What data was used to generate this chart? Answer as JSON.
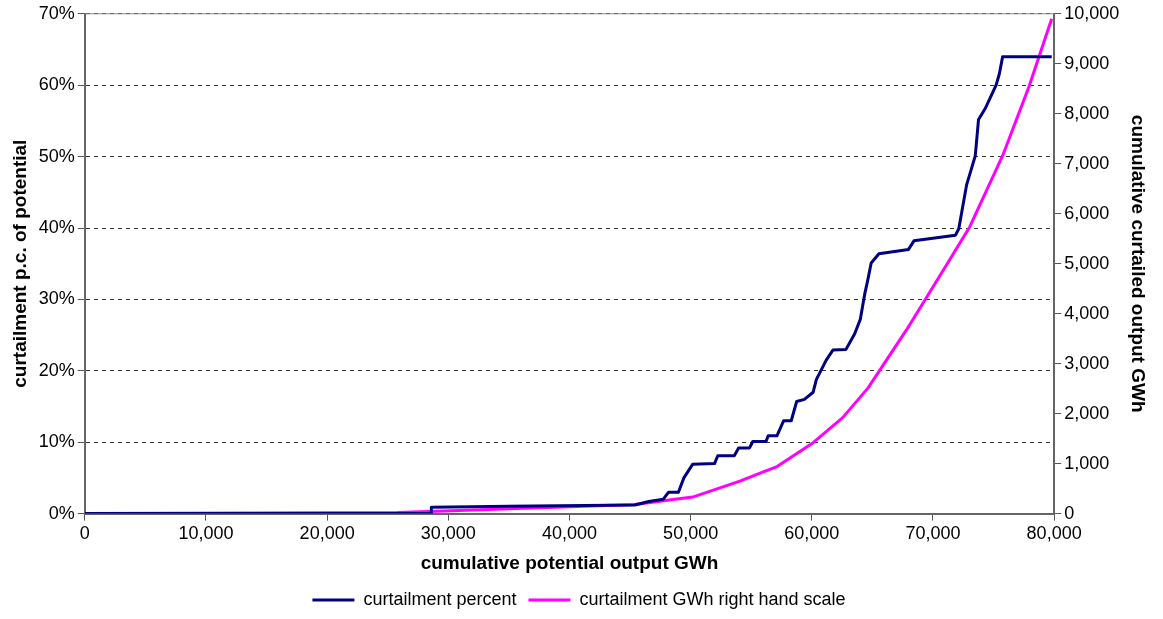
{
  "chart_data": {
    "type": "line",
    "xlabel": "cumulative potential output GWh",
    "ylabel": "curtailment p.c. of potential",
    "y2label": "cumulative curtailed output GWh",
    "xlim": [
      0,
      80000
    ],
    "xticks": [
      {
        "value": 0,
        "label": "0"
      },
      {
        "value": 10000,
        "label": "10,000"
      },
      {
        "value": 20000,
        "label": "20,000"
      },
      {
        "value": 30000,
        "label": "30,000"
      },
      {
        "value": 40000,
        "label": "40,000"
      },
      {
        "value": 50000,
        "label": "50,000"
      },
      {
        "value": 60000,
        "label": "60,000"
      },
      {
        "value": 70000,
        "label": "70,000"
      },
      {
        "value": 80000,
        "label": "80,000"
      }
    ],
    "ylim": [
      0,
      70
    ],
    "yticks": [
      {
        "value": 0,
        "label": "0%"
      },
      {
        "value": 10,
        "label": "10%"
      },
      {
        "value": 20,
        "label": "20%"
      },
      {
        "value": 30,
        "label": "30%"
      },
      {
        "value": 40,
        "label": "40%"
      },
      {
        "value": 50,
        "label": "50%"
      },
      {
        "value": 60,
        "label": "60%"
      },
      {
        "value": 70,
        "label": "70%"
      }
    ],
    "y2lim": [
      0,
      10000
    ],
    "y2ticks": [
      {
        "value": 0,
        "label": "0"
      },
      {
        "value": 1000,
        "label": "1,000"
      },
      {
        "value": 2000,
        "label": "2,000"
      },
      {
        "value": 3000,
        "label": "3,000"
      },
      {
        "value": 4000,
        "label": "4,000"
      },
      {
        "value": 5000,
        "label": "5,000"
      },
      {
        "value": 6000,
        "label": "6,000"
      },
      {
        "value": 7000,
        "label": "7,000"
      },
      {
        "value": 8000,
        "label": "8,000"
      },
      {
        "value": 9000,
        "label": "9,000"
      },
      {
        "value": 10000,
        "label": "10,000"
      }
    ],
    "grid": "y",
    "legend": "bottom",
    "marker": "none",
    "line_style": "solid",
    "series": [
      {
        "name": "curtailment percent",
        "color": "#000080",
        "x": [
          0,
          28600,
          28600,
          45400,
          46550,
          47730,
          48180,
          48990,
          49440,
          50160,
          51970,
          52240,
          53600,
          53960,
          54860,
          55130,
          56220,
          56400,
          57120,
          57670,
          58300,
          58750,
          59390,
          60110,
          60380,
          61190,
          61740,
          62820,
          63540,
          64000,
          64360,
          64630,
          64900,
          65540,
          67980,
          68430,
          71860,
          72130,
          72770,
          73490,
          73760,
          74300,
          75210,
          75480,
          75750,
          79800
        ],
        "values": [
          0,
          0,
          0.9,
          1.2,
          1.7,
          2,
          3,
          3,
          5,
          6.9,
          7,
          8.1,
          8.1,
          9.2,
          9.2,
          10.1,
          10.1,
          10.9,
          10.9,
          13,
          13,
          15.7,
          16,
          17,
          18.8,
          21.5,
          22.9,
          23,
          25.2,
          27.2,
          30.7,
          32.8,
          35.1,
          36.4,
          37,
          38.2,
          39,
          39.9,
          46,
          50.1,
          55.2,
          56.7,
          60,
          61.6,
          64,
          64
        ]
      },
      {
        "name": "curtailment GWh right hand scale",
        "color": "#ff00ff",
        "axis": "y2",
        "x": [
          0,
          25800,
          45380,
          50160,
          54060,
          57130,
          60110,
          62550,
          64630,
          67800,
          71230,
          73040,
          75750,
          77920,
          79800
        ],
        "values": [
          0,
          20,
          180,
          330,
          650,
          940,
          1420,
          1920,
          2510,
          3670,
          5020,
          5740,
          7160,
          8540,
          9900
        ]
      }
    ]
  }
}
